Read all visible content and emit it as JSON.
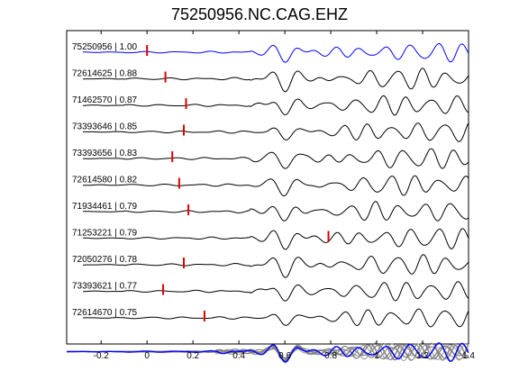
{
  "chart_data": {
    "type": "line",
    "title": "75250956.NC.CAG.EHZ",
    "xlabel": "",
    "ylabel": "",
    "xlim": [
      -0.35,
      1.4
    ],
    "xticks": [
      -0.2,
      0,
      0.2,
      0.4,
      0.6,
      0.8,
      1,
      1.2,
      1.4
    ],
    "xtick_labels": [
      "-0.2",
      "0",
      "0.2",
      "0.4",
      "0.6",
      "0.8",
      "1",
      "1.2",
      "1.4"
    ],
    "grid": false,
    "colors": {
      "reference": "#0000ff",
      "trace": "#000000",
      "pick": "#dd0000",
      "stack": "#808080"
    },
    "series": [
      {
        "name": "75250956 | 1.00",
        "pick": 0.0,
        "color": "#0000ff",
        "reference": true
      },
      {
        "name": "72614625 | 0.88",
        "pick": 0.08,
        "color": "#000000"
      },
      {
        "name": "71462570 | 0.87",
        "pick": 0.17,
        "color": "#000000"
      },
      {
        "name": "73393646 | 0.85",
        "pick": 0.16,
        "color": "#000000"
      },
      {
        "name": "73393656 | 0.83",
        "pick": 0.11,
        "color": "#000000"
      },
      {
        "name": "72614580 | 0.82",
        "pick": 0.14,
        "color": "#000000"
      },
      {
        "name": "71934461 | 0.79",
        "pick": 0.18,
        "color": "#000000"
      },
      {
        "name": "71253221 | 0.79",
        "pick": 0.79,
        "color": "#000000"
      },
      {
        "name": "72050276 | 0.78",
        "pick": 0.16,
        "color": "#000000"
      },
      {
        "name": "73393621 | 0.77",
        "pick": 0.07,
        "color": "#000000"
      },
      {
        "name": "72614670 | 0.75",
        "pick": 0.25,
        "color": "#000000"
      }
    ],
    "stack": {
      "name": "",
      "overlay_count": 11
    }
  }
}
